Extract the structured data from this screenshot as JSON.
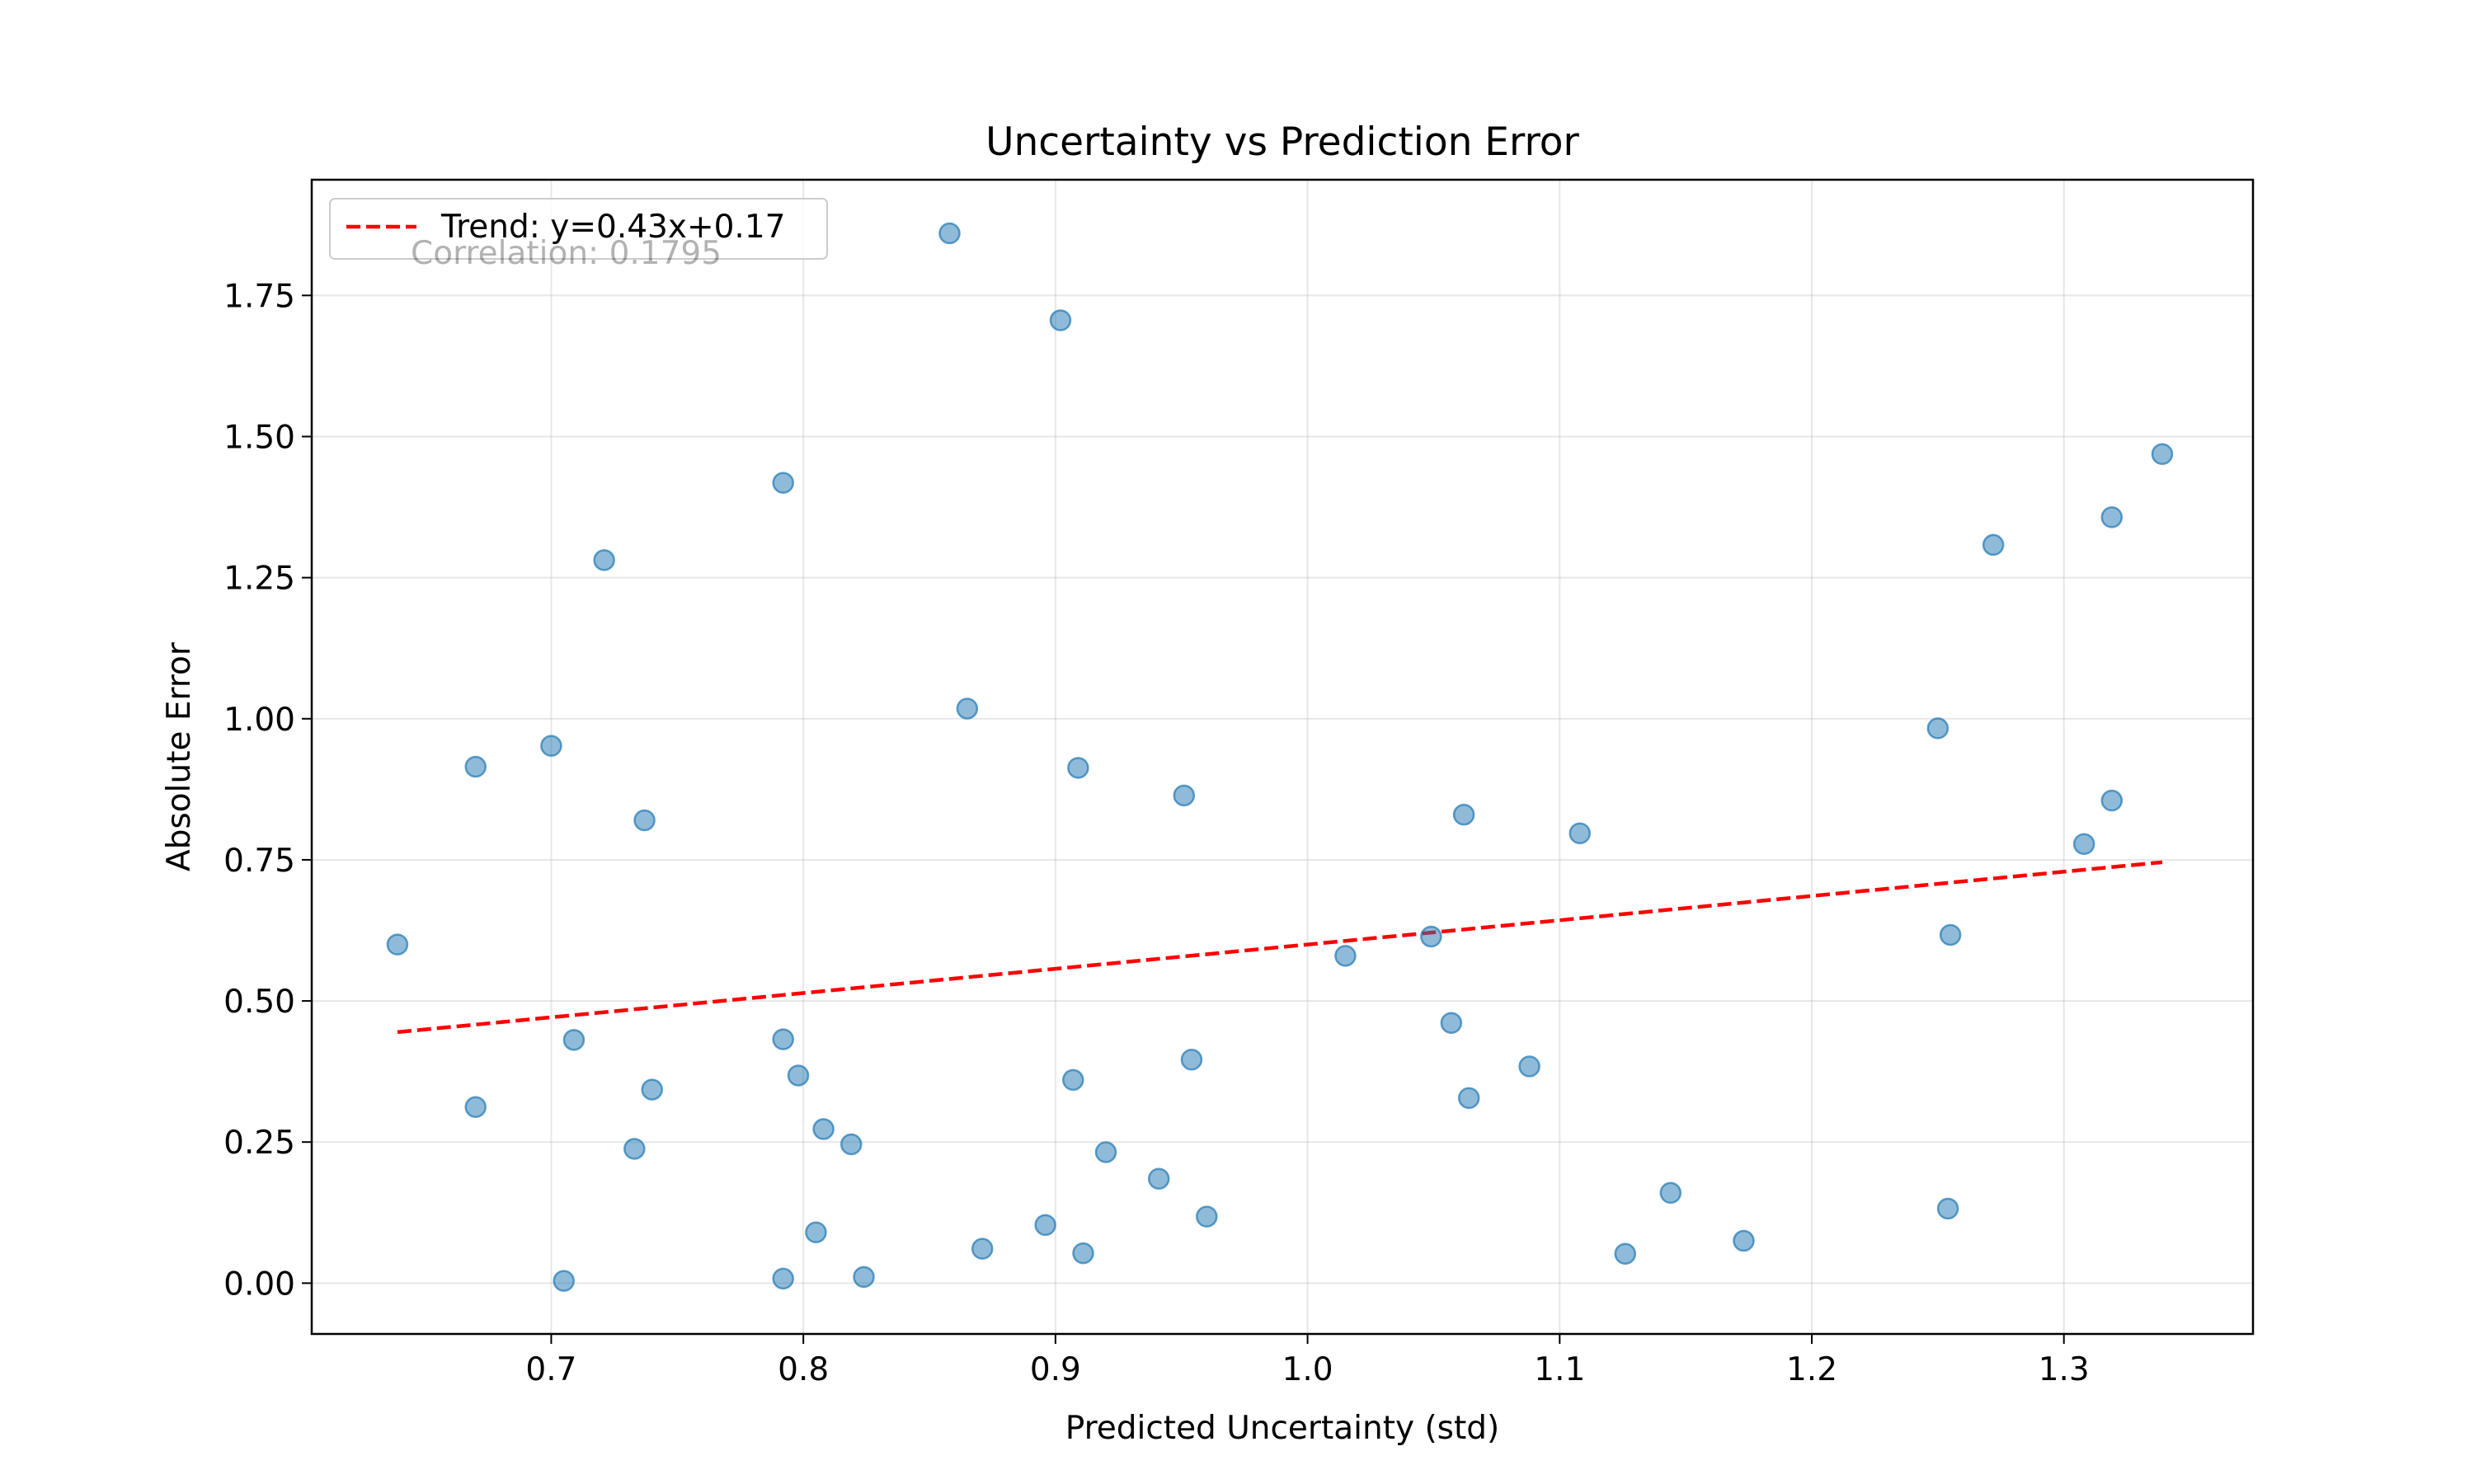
{
  "chart_data": {
    "type": "scatter",
    "title": "Uncertainty vs Prediction Error",
    "xlabel": "Predicted Uncertainty (std)",
    "ylabel": "Absolute Error",
    "xlim": [
      0.605,
      1.375
    ],
    "ylim": [
      -0.09,
      1.955
    ],
    "x_ticks": [
      0.7,
      0.8,
      0.9,
      1.0,
      1.1,
      1.2,
      1.3
    ],
    "x_tick_labels": [
      "0.7",
      "0.8",
      "0.9",
      "1.0",
      "1.1",
      "1.2",
      "1.3"
    ],
    "y_ticks": [
      0.0,
      0.25,
      0.5,
      0.75,
      1.0,
      1.25,
      1.5,
      1.75
    ],
    "y_tick_labels": [
      "0.00",
      "0.25",
      "0.50",
      "0.75",
      "1.00",
      "1.25",
      "1.50",
      "1.75"
    ],
    "grid": true,
    "legend_position": "top-left",
    "annotation": "Correlation: 0.1795",
    "series": [
      {
        "kind": "scatter",
        "color": "#1f77b4",
        "alpha": 0.5,
        "points": [
          [
            0.639,
            0.6
          ],
          [
            0.67,
            0.915
          ],
          [
            0.67,
            0.312
          ],
          [
            0.7,
            0.952
          ],
          [
            0.705,
            0.004
          ],
          [
            0.709,
            0.431
          ],
          [
            0.721,
            1.281
          ],
          [
            0.733,
            0.238
          ],
          [
            0.737,
            0.82
          ],
          [
            0.74,
            0.343
          ],
          [
            0.792,
            1.418
          ],
          [
            0.792,
            0.432
          ],
          [
            0.792,
            0.008
          ],
          [
            0.798,
            0.368
          ],
          [
            0.805,
            0.09
          ],
          [
            0.808,
            0.273
          ],
          [
            0.819,
            0.246
          ],
          [
            0.824,
            0.011
          ],
          [
            0.858,
            1.86
          ],
          [
            0.865,
            1.018
          ],
          [
            0.871,
            0.061
          ],
          [
            0.896,
            0.103
          ],
          [
            0.902,
            1.706
          ],
          [
            0.907,
            0.36
          ],
          [
            0.909,
            0.913
          ],
          [
            0.911,
            0.053
          ],
          [
            0.92,
            0.232
          ],
          [
            0.941,
            0.185
          ],
          [
            0.951,
            0.864
          ],
          [
            0.954,
            0.396
          ],
          [
            0.96,
            0.118
          ],
          [
            1.015,
            0.58
          ],
          [
            1.049,
            0.614
          ],
          [
            1.057,
            0.461
          ],
          [
            1.062,
            0.83
          ],
          [
            1.064,
            0.328
          ],
          [
            1.088,
            0.384
          ],
          [
            1.108,
            0.797
          ],
          [
            1.126,
            0.052
          ],
          [
            1.144,
            0.16
          ],
          [
            1.173,
            0.075
          ],
          [
            1.25,
            0.983
          ],
          [
            1.254,
            0.132
          ],
          [
            1.255,
            0.617
          ],
          [
            1.272,
            1.308
          ],
          [
            1.308,
            0.778
          ],
          [
            1.319,
            0.855
          ],
          [
            1.319,
            1.357
          ],
          [
            1.339,
            1.469
          ]
        ]
      },
      {
        "kind": "trend",
        "name": "Trend: y=0.43x+0.17",
        "color": "#ff0000",
        "style": "dashed",
        "slope": 0.43,
        "intercept": 0.17,
        "x_range": [
          0.639,
          1.339
        ]
      }
    ]
  }
}
